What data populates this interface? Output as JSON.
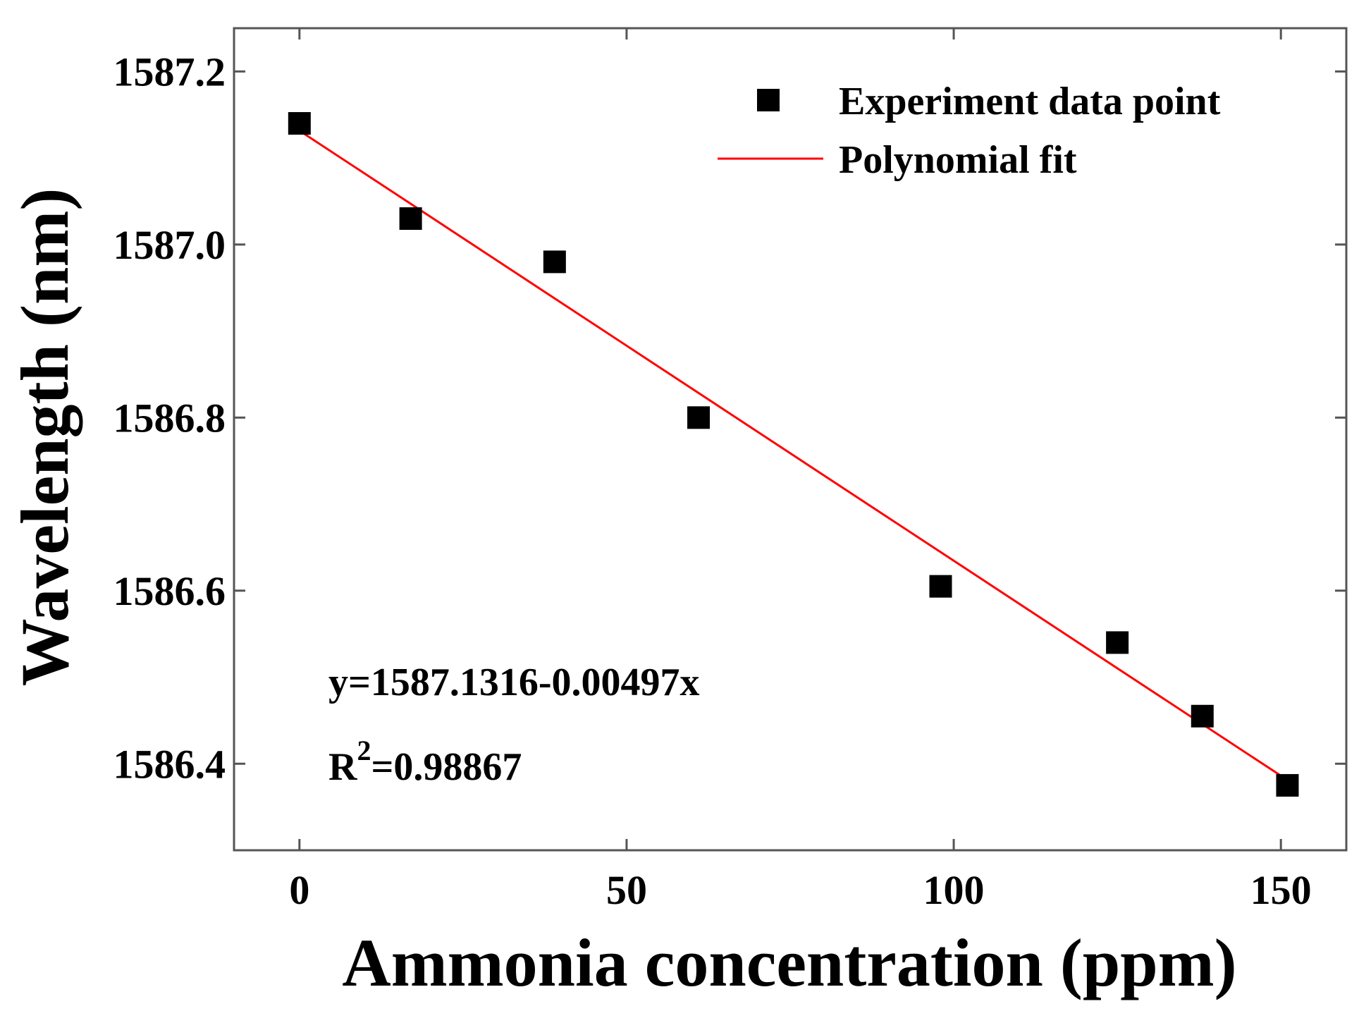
{
  "chart_data": {
    "type": "scatter",
    "title": "",
    "xlabel": "Ammonia concentration (ppm)",
    "ylabel": "Wavelength (nm)",
    "xlim": [
      -10,
      160
    ],
    "ylim": [
      1586.3,
      1587.25
    ],
    "xticks": [
      0,
      50,
      100,
      150
    ],
    "yticks": [
      1586.4,
      1586.6,
      1586.8,
      1587.0,
      1587.2
    ],
    "xtick_labels": [
      "0",
      "50",
      "100",
      "150"
    ],
    "ytick_labels": [
      "1586.4",
      "1586.6",
      "1586.8",
      "1587.0",
      "1587.2"
    ],
    "grid": false,
    "legend_position": "top-right",
    "series": [
      {
        "name": "Experiment data point",
        "type": "scatter",
        "marker": "square",
        "color": "#000000",
        "x": [
          0,
          17,
          39,
          61,
          98,
          125,
          138,
          151
        ],
        "y": [
          1587.14,
          1587.03,
          1586.98,
          1586.8,
          1586.605,
          1586.54,
          1586.455,
          1586.375
        ]
      },
      {
        "name": "Polynomial fit",
        "type": "line",
        "color": "#ff0000",
        "intercept": 1587.1316,
        "slope": -0.00497,
        "x": [
          0,
          151
        ]
      }
    ],
    "annotations": {
      "equation": "y=1587.1316-0.00497x",
      "r2_base": "R",
      "r2_sup": "2",
      "r2_value": "=0.98867"
    }
  }
}
